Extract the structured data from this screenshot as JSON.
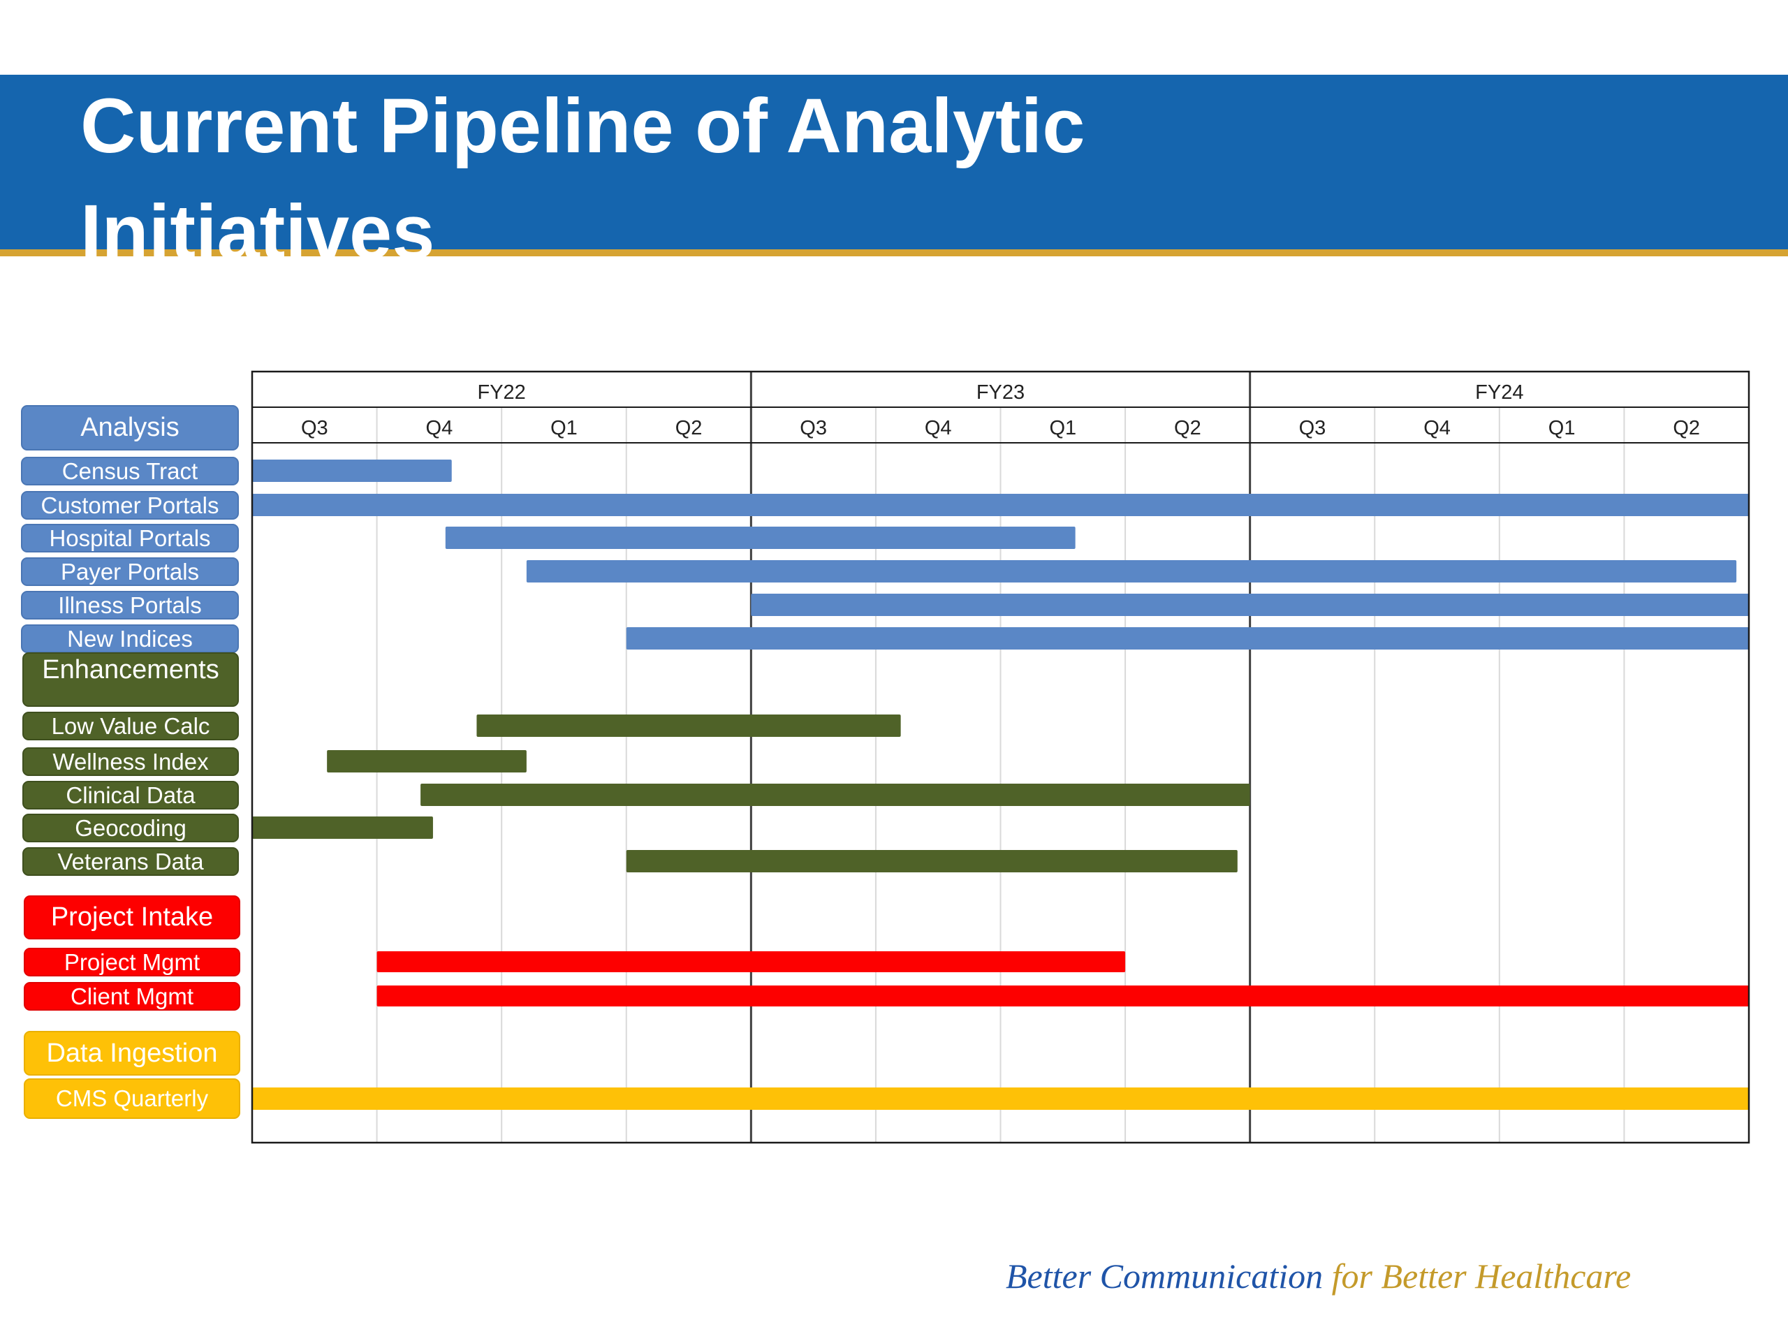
{
  "slide": {
    "title_lines": [
      "Current Pipeline of Analytic",
      "Initiatives"
    ],
    "tagline_part1": "Better Communication",
    "tagline_part2": " for Better Healthcare",
    "colors": {
      "title_band": "#1565ae",
      "title_rule": "#d6a332",
      "tagline_blue": "#1f54a8",
      "tagline_gold": "#c49a2a"
    }
  },
  "chart_data": {
    "type": "gantt",
    "fiscal_years": [
      {
        "label": "FY22",
        "quarters": [
          "Q3",
          "Q4",
          "Q1",
          "Q2"
        ]
      },
      {
        "label": "FY23",
        "quarters": [
          "Q3",
          "Q4",
          "Q1",
          "Q2"
        ]
      },
      {
        "label": "FY24",
        "quarters": [
          "Q3",
          "Q4",
          "Q1",
          "Q2"
        ]
      }
    ],
    "x_range_quarters": [
      0,
      12
    ],
    "grid": true,
    "groups": [
      {
        "name": "Analysis",
        "color": "#5a87c6",
        "tasks": [
          {
            "name": "Census Tract",
            "start": 0.0,
            "end": 1.6
          },
          {
            "name": "Customer Portals",
            "start": 0.0,
            "end": 12.0
          },
          {
            "name": "Hospital Portals",
            "start": 1.55,
            "end": 6.6
          },
          {
            "name": "Payer Portals",
            "start": 2.2,
            "end": 11.9
          },
          {
            "name": "Illness Portals",
            "start": 4.0,
            "end": 12.0
          },
          {
            "name": "New Indices",
            "start": 3.0,
            "end": 12.0
          }
        ]
      },
      {
        "name": "Enhancements",
        "color": "#4f6228",
        "tasks": [
          {
            "name": "Low Value Calc",
            "start": 1.8,
            "end": 5.2
          },
          {
            "name": "Wellness Index",
            "start": 0.6,
            "end": 2.2
          },
          {
            "name": "Clinical Data",
            "start": 1.35,
            "end": 8.0
          },
          {
            "name": "Geocoding",
            "start": 0.0,
            "end": 1.45
          },
          {
            "name": "Veterans Data",
            "start": 3.0,
            "end": 7.9
          }
        ]
      },
      {
        "name": "Project Intake",
        "color": "#fd0000",
        "tasks": [
          {
            "name": "Project Mgmt",
            "start": 1.0,
            "end": 7.0
          },
          {
            "name": "Client Mgmt",
            "start": 1.0,
            "end": 12.0
          }
        ]
      },
      {
        "name": "Data Ingestion",
        "color": "#fec107",
        "tasks": [
          {
            "name": "CMS Quarterly",
            "start": 0.0,
            "end": 12.0
          }
        ]
      }
    ]
  }
}
